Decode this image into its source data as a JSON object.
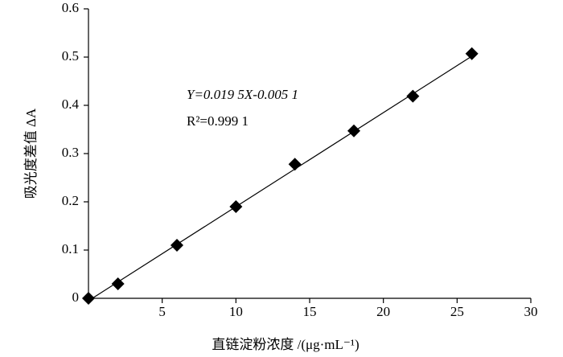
{
  "chart_data": {
    "type": "scatter",
    "x_label": "直链淀粉浓度 /(μg·mL⁻¹)",
    "y_label": "吸光度差值 ΔA",
    "annotations": [
      "Y=0.019 5X-0.005 1",
      "R²=0.999 1"
    ],
    "x": [
      0,
      2,
      6,
      10,
      14,
      18,
      22,
      26
    ],
    "values": [
      0,
      0.03,
      0.11,
      0.19,
      0.278,
      0.347,
      0.419,
      0.507
    ],
    "color": "#000000",
    "trendline": {
      "slope": 0.0195,
      "intercept": -0.0051
    },
    "xlim": [
      0,
      30
    ],
    "xticks": [
      5,
      10,
      15,
      20,
      25,
      30
    ],
    "ylim": [
      0,
      0.6
    ],
    "yticks": [
      0,
      0.1,
      0.2,
      0.3,
      0.4,
      0.5,
      0.6
    ],
    "grid": false
  }
}
